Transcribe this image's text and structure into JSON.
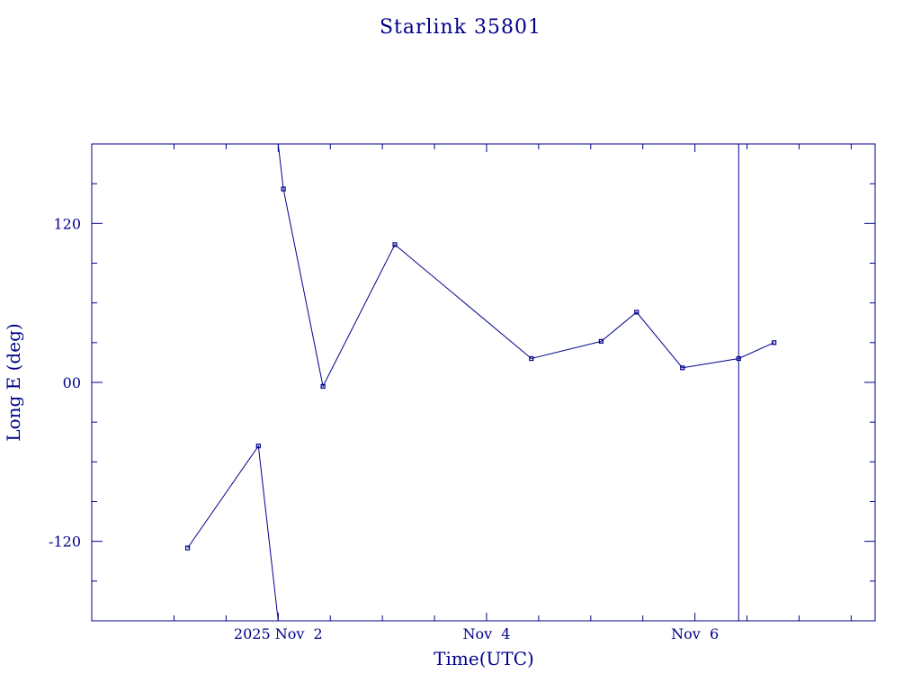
{
  "chart_data": {
    "type": "line",
    "title": "Starlink 35801",
    "xlabel": "Time(UTC)",
    "ylabel": "Long E (deg)",
    "xlim": [
      0.21,
      7.73
    ],
    "ylim": [
      -180,
      180
    ],
    "x_ticks": [
      {
        "value": 2.0,
        "label": "2025 Nov  2"
      },
      {
        "value": 4.0,
        "label": "Nov  4"
      },
      {
        "value": 6.0,
        "label": "Nov  6"
      }
    ],
    "y_ticks": [
      {
        "value": 120,
        "label": "120"
      },
      {
        "value": 0,
        "label": "00"
      },
      {
        "value": -120,
        "label": "-120"
      }
    ],
    "segments": [
      {
        "points": [
          {
            "x": 1.13,
            "y": -125
          },
          {
            "x": 1.81,
            "y": -48
          },
          {
            "x": 2.0,
            "y": -180
          }
        ],
        "markers": [
          0,
          1
        ]
      },
      {
        "points": [
          {
            "x": 2.0,
            "y": 180
          },
          {
            "x": 2.05,
            "y": 146
          },
          {
            "x": 2.43,
            "y": -3
          },
          {
            "x": 3.12,
            "y": 104
          },
          {
            "x": 4.43,
            "y": 18
          },
          {
            "x": 5.1,
            "y": 31
          },
          {
            "x": 5.44,
            "y": 53
          },
          {
            "x": 5.88,
            "y": 11
          },
          {
            "x": 6.42,
            "y": 18
          },
          {
            "x": 6.76,
            "y": 30
          }
        ],
        "markers": [
          1,
          2,
          3,
          4,
          5,
          6,
          7,
          8,
          9
        ]
      }
    ],
    "vertical_marker_x": 6.42,
    "grid": false
  }
}
